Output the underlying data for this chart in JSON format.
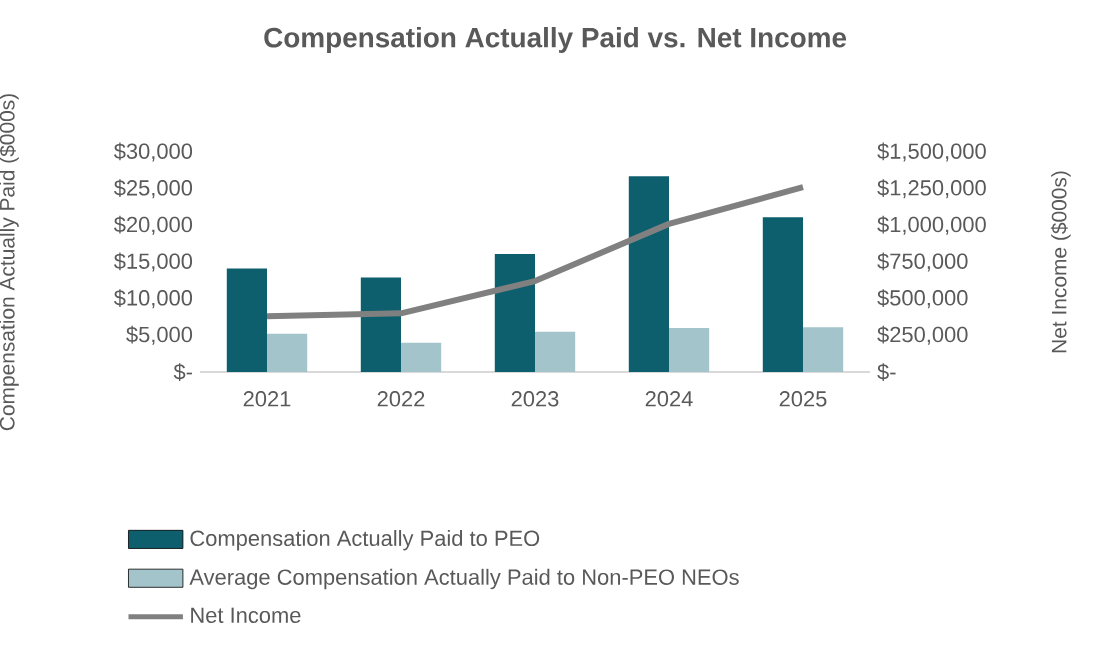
{
  "chart_data": {
    "type": "bar",
    "title": "Compensation Actually Paid vs. Net Income",
    "ylabel": "Compensation Actually Paid ($000s)",
    "y2label": "Net Income ($000s)",
    "categories": [
      "2021",
      "2022",
      "2023",
      "2024",
      "2025"
    ],
    "series": [
      {
        "name": "Compensation Actually Paid to PEO",
        "color": "#0e5f6e",
        "values": [
          14100,
          12900,
          16100,
          26700,
          21100
        ]
      },
      {
        "name": "Average Compensation Actually Paid to Non-PEO NEOs",
        "color": "#a3c4cb",
        "values": [
          5200,
          4000,
          5500,
          6000,
          6100
        ]
      },
      {
        "name": "Net Income",
        "type": "line",
        "axis": "y2",
        "color": "#808080",
        "values": [
          380000,
          400000,
          620000,
          1010000,
          1260000
        ]
      }
    ],
    "ylim": [
      0,
      30000
    ],
    "yticks": [
      {
        "value": 0,
        "label": "$-"
      },
      {
        "value": 5000,
        "label": "$5,000"
      },
      {
        "value": 10000,
        "label": "$10,000"
      },
      {
        "value": 15000,
        "label": "$15,000"
      },
      {
        "value": 20000,
        "label": "$20,000"
      },
      {
        "value": 25000,
        "label": "$25,000"
      },
      {
        "value": 30000,
        "label": "$30,000"
      }
    ],
    "y2lim": [
      0,
      1500000
    ],
    "y2ticks": [
      {
        "value": 0,
        "label": "$-"
      },
      {
        "value": 250000,
        "label": "$250,000"
      },
      {
        "value": 500000,
        "label": "$500,000"
      },
      {
        "value": 750000,
        "label": "$750,000"
      },
      {
        "value": 1000000,
        "label": "$1,000,000"
      },
      {
        "value": 1250000,
        "label": "$1,250,000"
      },
      {
        "value": 1500000,
        "label": "$1,500,000"
      }
    ],
    "grid": false,
    "legend": "bottom"
  }
}
